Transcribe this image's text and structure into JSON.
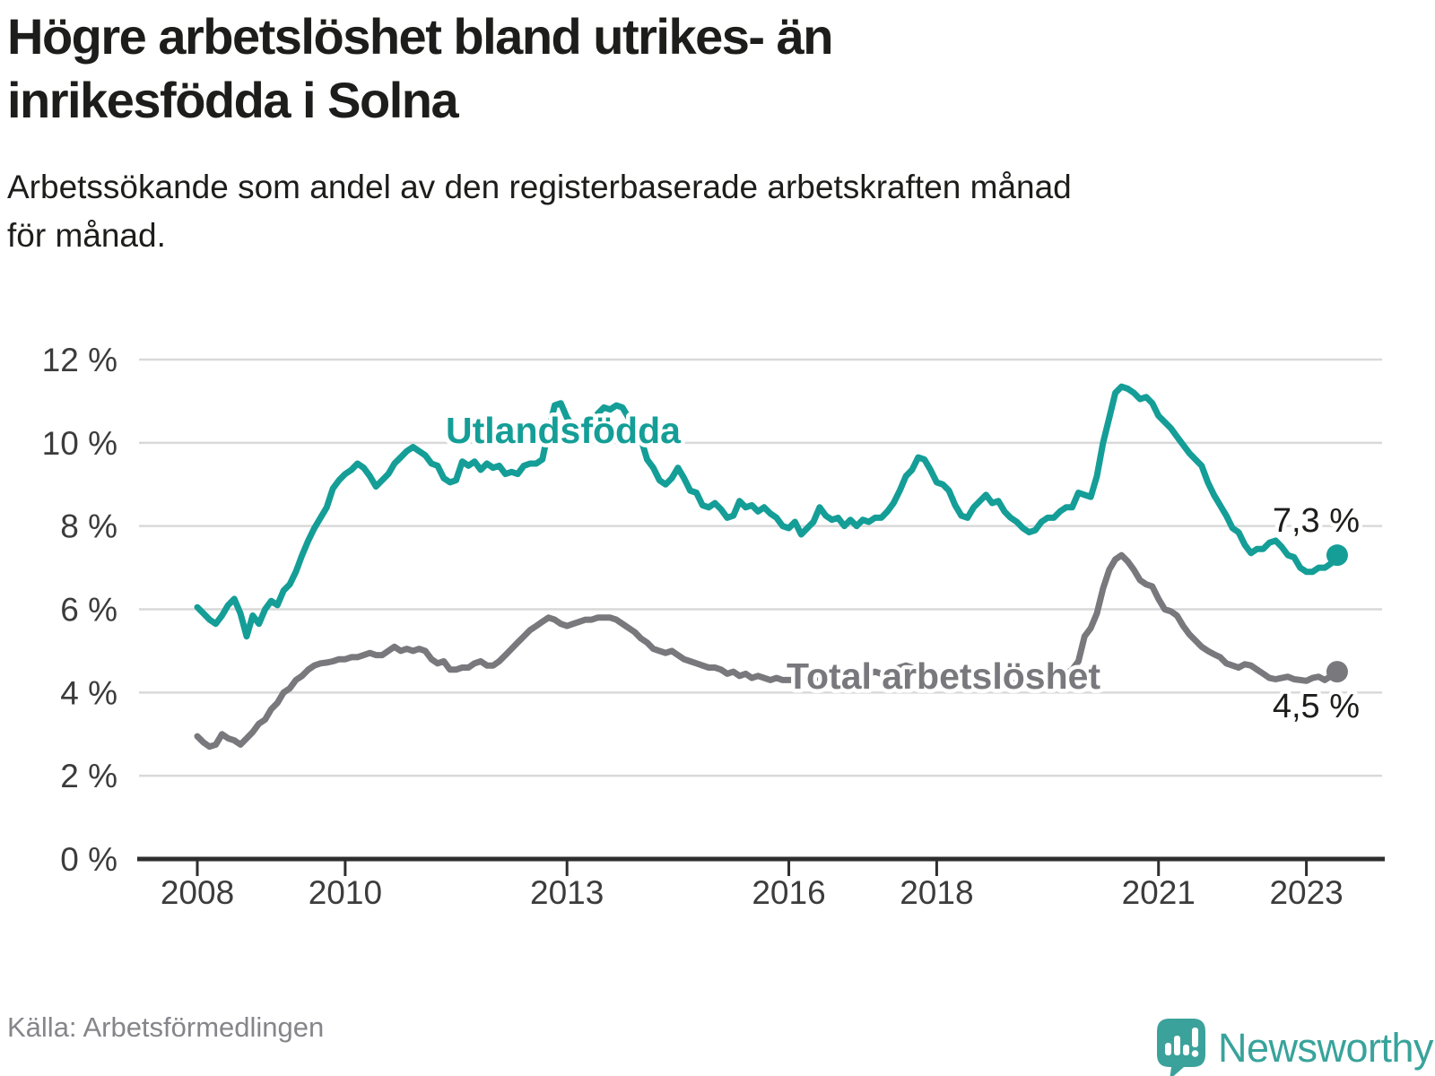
{
  "header": {
    "title": "Högre arbetslöshet bland utrikes- än\ninrikesfödda i Solna",
    "subtitle": "Arbetssökande som andel av den registerbaserade arbetskraften månad\nför månad."
  },
  "footer": {
    "source": "Källa: Arbetsförmedlingen",
    "brand": "Newsworthy"
  },
  "colors": {
    "series_foreign_born": "#149e97",
    "series_total": "#78787d",
    "annotation": "#1d1d1b",
    "grid": "#d9d9d9",
    "axis": "#2e2e2e",
    "logo": "#3ba29b"
  },
  "chart_data": {
    "type": "line",
    "title": "Högre arbetslöshet bland utrikes- än inrikesfödda i Solna",
    "xlabel": "",
    "ylabel": "Arbetssökande som andel av den registerbaserade arbetskraften",
    "unit": "%",
    "ylim": [
      0,
      12
    ],
    "grid": "horizontal",
    "legend_position": "inline-labels",
    "x_start": "2008-01",
    "x_end": "2023-06",
    "frequency": "monthly",
    "y_tick_labels": [
      "12 %",
      "10 %",
      "8 %",
      "6 %",
      "4 %",
      "2 %",
      "0 %"
    ],
    "x_tick_labels": [
      "2008",
      "2010",
      "2013",
      "2016",
      "2018",
      "2021",
      "2023"
    ],
    "series": [
      {
        "name": "utlandsfodda",
        "label": "Utlandsfödda",
        "color": "#149e97",
        "end_label": "7,3 %",
        "end_value": 7.3,
        "values": [
          6.05,
          5.9,
          5.75,
          5.65,
          5.85,
          6.1,
          6.25,
          5.9,
          5.35,
          5.85,
          5.65,
          6.0,
          6.2,
          6.1,
          6.45,
          6.6,
          6.9,
          7.3,
          7.65,
          7.95,
          8.2,
          8.45,
          8.9,
          9.1,
          9.25,
          9.35,
          9.5,
          9.4,
          9.2,
          8.95,
          9.1,
          9.25,
          9.5,
          9.65,
          9.8,
          9.9,
          9.8,
          9.7,
          9.5,
          9.45,
          9.15,
          9.05,
          9.1,
          9.55,
          9.45,
          9.55,
          9.35,
          9.5,
          9.4,
          9.45,
          9.25,
          9.3,
          9.25,
          9.45,
          9.5,
          9.5,
          9.6,
          10.3,
          10.9,
          10.95,
          10.6,
          10.4,
          10.3,
          10.35,
          10.5,
          10.7,
          10.85,
          10.8,
          10.9,
          10.85,
          10.6,
          10.35,
          10.1,
          9.6,
          9.4,
          9.1,
          9.0,
          9.15,
          9.4,
          9.15,
          8.85,
          8.8,
          8.5,
          8.45,
          8.55,
          8.4,
          8.2,
          8.25,
          8.6,
          8.45,
          8.5,
          8.35,
          8.45,
          8.3,
          8.2,
          8.0,
          7.95,
          8.1,
          7.8,
          7.95,
          8.1,
          8.45,
          8.25,
          8.15,
          8.2,
          8.0,
          8.15,
          8.0,
          8.15,
          8.1,
          8.2,
          8.2,
          8.35,
          8.55,
          8.85,
          9.2,
          9.35,
          9.65,
          9.6,
          9.35,
          9.05,
          9.0,
          8.85,
          8.5,
          8.25,
          8.2,
          8.45,
          8.6,
          8.75,
          8.55,
          8.6,
          8.35,
          8.2,
          8.1,
          7.95,
          7.85,
          7.9,
          8.1,
          8.2,
          8.2,
          8.35,
          8.45,
          8.45,
          8.8,
          8.75,
          8.7,
          9.2,
          10.0,
          10.6,
          11.2,
          11.35,
          11.3,
          11.2,
          11.05,
          11.1,
          10.95,
          10.65,
          10.5,
          10.35,
          10.15,
          9.95,
          9.75,
          9.6,
          9.45,
          9.05,
          8.75,
          8.5,
          8.25,
          7.95,
          7.85,
          7.55,
          7.35,
          7.45,
          7.45,
          7.6,
          7.65,
          7.5,
          7.3,
          7.25,
          7.0,
          6.9,
          6.9,
          7.0,
          7.0,
          7.1,
          7.3
        ]
      },
      {
        "name": "total",
        "label": "Total arbetslöshet",
        "color": "#78787d",
        "end_label": "4,5 %",
        "end_value": 4.5,
        "values": [
          2.95,
          2.8,
          2.7,
          2.75,
          3.0,
          2.9,
          2.85,
          2.75,
          2.9,
          3.05,
          3.25,
          3.35,
          3.6,
          3.75,
          4.0,
          4.1,
          4.3,
          4.4,
          4.55,
          4.65,
          4.7,
          4.72,
          4.75,
          4.8,
          4.8,
          4.85,
          4.85,
          4.9,
          4.95,
          4.9,
          4.9,
          5.0,
          5.1,
          5.0,
          5.05,
          5.0,
          5.05,
          5.0,
          4.8,
          4.7,
          4.75,
          4.55,
          4.55,
          4.6,
          4.6,
          4.7,
          4.75,
          4.65,
          4.65,
          4.75,
          4.9,
          5.05,
          5.2,
          5.35,
          5.5,
          5.6,
          5.7,
          5.8,
          5.75,
          5.65,
          5.6,
          5.65,
          5.7,
          5.75,
          5.75,
          5.8,
          5.8,
          5.8,
          5.75,
          5.65,
          5.55,
          5.45,
          5.3,
          5.2,
          5.05,
          5.0,
          4.95,
          5.0,
          4.9,
          4.8,
          4.75,
          4.7,
          4.65,
          4.6,
          4.6,
          4.55,
          4.45,
          4.5,
          4.4,
          4.45,
          4.35,
          4.4,
          4.35,
          4.3,
          4.35,
          4.3,
          4.3,
          4.3,
          4.25,
          4.3,
          4.25,
          4.3,
          4.35,
          4.4,
          4.45,
          4.4,
          4.35,
          4.4,
          4.4,
          4.45,
          4.5,
          4.45,
          4.5,
          4.55,
          4.6,
          4.65,
          4.6,
          4.55,
          4.5,
          4.55,
          4.5,
          4.45,
          4.4,
          4.45,
          4.4,
          4.35,
          4.3,
          4.35,
          4.3,
          4.25,
          4.3,
          4.25,
          4.2,
          4.25,
          4.2,
          4.15,
          4.2,
          4.25,
          4.3,
          4.35,
          4.4,
          4.45,
          4.55,
          4.75,
          5.35,
          5.55,
          5.9,
          6.5,
          6.95,
          7.2,
          7.3,
          7.15,
          6.95,
          6.7,
          6.6,
          6.55,
          6.25,
          6.0,
          5.95,
          5.85,
          5.6,
          5.4,
          5.25,
          5.1,
          5.0,
          4.92,
          4.85,
          4.7,
          4.65,
          4.6,
          4.68,
          4.65,
          4.55,
          4.45,
          4.35,
          4.32,
          4.35,
          4.38,
          4.32,
          4.3,
          4.28,
          4.35,
          4.38,
          4.3,
          4.4,
          4.5
        ]
      }
    ]
  }
}
